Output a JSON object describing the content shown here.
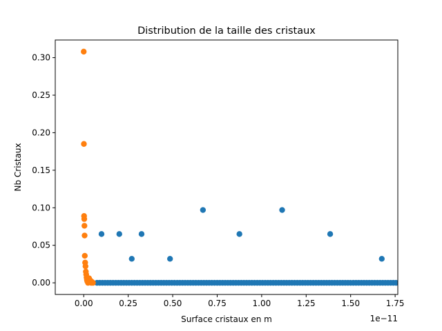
{
  "chart_data": {
    "type": "scatter",
    "title": "Distribution de la taille des cristaux",
    "xlabel": "Surface cristaux en m",
    "ylabel": "Nb Cristaux",
    "x_offset_label": "1e−11",
    "xlim": [
      -0.16,
      1.765
    ],
    "ylim": [
      -0.0155,
      0.3235
    ],
    "x_ticks": [
      0.0,
      0.25,
      0.5,
      0.75,
      1.0,
      1.25,
      1.5,
      1.75
    ],
    "x_tick_labels": [
      "0.00",
      "0.25",
      "0.50",
      "0.75",
      "1.00",
      "1.25",
      "1.50",
      "1.75"
    ],
    "y_ticks": [
      0.0,
      0.05,
      0.1,
      0.15,
      0.2,
      0.25,
      0.3
    ],
    "y_tick_labels": [
      "0.00",
      "0.05",
      "0.10",
      "0.15",
      "0.20",
      "0.25",
      "0.30"
    ],
    "grid": false,
    "series": [
      {
        "color": "#1f77b4",
        "points": [
          [
            0.1,
            0.065
          ],
          [
            0.2,
            0.065
          ],
          [
            0.27,
            0.032
          ],
          [
            0.325,
            0.065
          ],
          [
            0.485,
            0.032
          ],
          [
            0.67,
            0.097
          ],
          [
            0.875,
            0.065
          ],
          [
            1.115,
            0.097
          ],
          [
            1.385,
            0.065
          ],
          [
            1.675,
            0.032
          ]
        ],
        "baseline": {
          "y": 0.0,
          "x_start": 0.075,
          "x_end": 1.765,
          "step": 0.015
        }
      },
      {
        "color": "#ff7f0e",
        "points": [
          [
            0.0,
            0.308
          ],
          [
            0.001,
            0.185
          ],
          [
            0.002,
            0.089
          ],
          [
            0.003,
            0.085
          ],
          [
            0.004,
            0.076
          ],
          [
            0.005,
            0.063
          ],
          [
            0.006,
            0.036
          ],
          [
            0.008,
            0.027
          ],
          [
            0.01,
            0.022
          ],
          [
            0.012,
            0.015
          ],
          [
            0.014,
            0.011
          ],
          [
            0.016,
            0.007
          ],
          [
            0.018,
            0.004
          ],
          [
            0.02,
            0.002
          ],
          [
            0.024,
            0.0
          ],
          [
            0.03,
            0.006
          ],
          [
            0.034,
            0.001
          ],
          [
            0.038,
            0.003
          ],
          [
            0.042,
            0.0
          ],
          [
            0.048,
            0.001
          ],
          [
            0.052,
            0.0
          ]
        ]
      }
    ]
  }
}
